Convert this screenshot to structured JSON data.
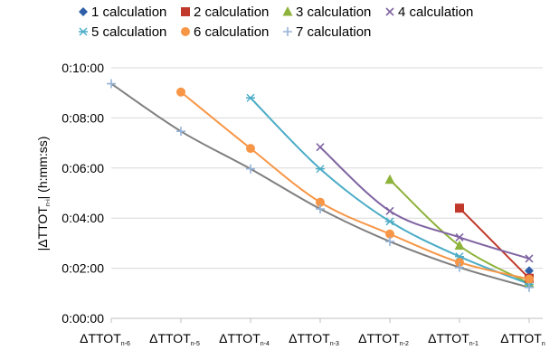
{
  "chart_data": {
    "type": "line",
    "ylabel_main": "|ΔTTOT",
    "ylabel_sub": "n-i",
    "ylabel_suffix": "| (h:mm:ss)",
    "x_ticks": [
      {
        "main": "ΔTTOT",
        "sub": "n-6"
      },
      {
        "main": "ΔTTOT",
        "sub": "n-5"
      },
      {
        "main": "ΔTTOT",
        "sub": "n-4"
      },
      {
        "main": "ΔTTOT",
        "sub": "n-3"
      },
      {
        "main": "ΔTTOT",
        "sub": "n-2"
      },
      {
        "main": "ΔTTOT",
        "sub": "n-1"
      },
      {
        "main": "ΔTTOT",
        "sub": "n"
      }
    ],
    "y_ticks": [
      "0:00:00",
      "0:02:00",
      "0:04:00",
      "0:06:00",
      "0:08:00",
      "0:10:00"
    ],
    "ylim_seconds": [
      0,
      600
    ],
    "grid": "horizontal",
    "legend_position": "top",
    "series": [
      {
        "name": "1 calculation",
        "marker": "diamond",
        "color": "#2e5fa8",
        "x": [
          6
        ],
        "y": [
          "0:01:54"
        ],
        "y_seconds": [
          114
        ]
      },
      {
        "name": "2 calculation",
        "marker": "square",
        "color": "#c0392b",
        "x": [
          5,
          6
        ],
        "y": [
          "0:04:24",
          "0:01:36"
        ],
        "y_seconds": [
          264,
          96
        ]
      },
      {
        "name": "3 calculation",
        "marker": "triangle",
        "color": "#8db33a",
        "x": [
          4,
          5,
          6
        ],
        "y": [
          "0:05:32",
          "0:02:54",
          "0:01:24"
        ],
        "y_seconds": [
          332,
          174,
          84
        ]
      },
      {
        "name": "4 calculation",
        "marker": "x",
        "color": "#8064a2",
        "x": [
          3,
          4,
          5,
          6
        ],
        "y": [
          "0:06:50",
          "0:04:17",
          "0:03:14",
          "0:02:23"
        ],
        "y_seconds": [
          410,
          257,
          194,
          143
        ]
      },
      {
        "name": "5 calculation",
        "marker": "star",
        "color": "#4bacc6",
        "x": [
          2,
          3,
          4,
          5,
          6
        ],
        "y": [
          "0:08:48",
          "0:05:58",
          "0:03:52",
          "0:02:28",
          "0:01:22"
        ],
        "y_seconds": [
          528,
          358,
          232,
          148,
          82
        ]
      },
      {
        "name": "6 calculation",
        "marker": "circle",
        "color": "#f79646",
        "x": [
          1,
          2,
          3,
          4,
          5,
          6
        ],
        "y": [
          "0:09:02",
          "0:06:47",
          "0:04:38",
          "0:03:22",
          "0:02:14",
          "0:01:34"
        ],
        "y_seconds": [
          542,
          407,
          278,
          202,
          134,
          94
        ]
      },
      {
        "name": "7 calculation",
        "marker": "plus",
        "color": "#95b3d7",
        "x": [
          0,
          1,
          2,
          3,
          4,
          5,
          6
        ],
        "y": [
          "0:09:22",
          "0:07:28",
          "0:05:58",
          "0:04:22",
          "0:03:04",
          "0:02:02",
          "0:01:14"
        ],
        "y_seconds": [
          562,
          448,
          358,
          262,
          184,
          122,
          74
        ]
      }
    ],
    "trendline_color": "#7f7f7f"
  }
}
